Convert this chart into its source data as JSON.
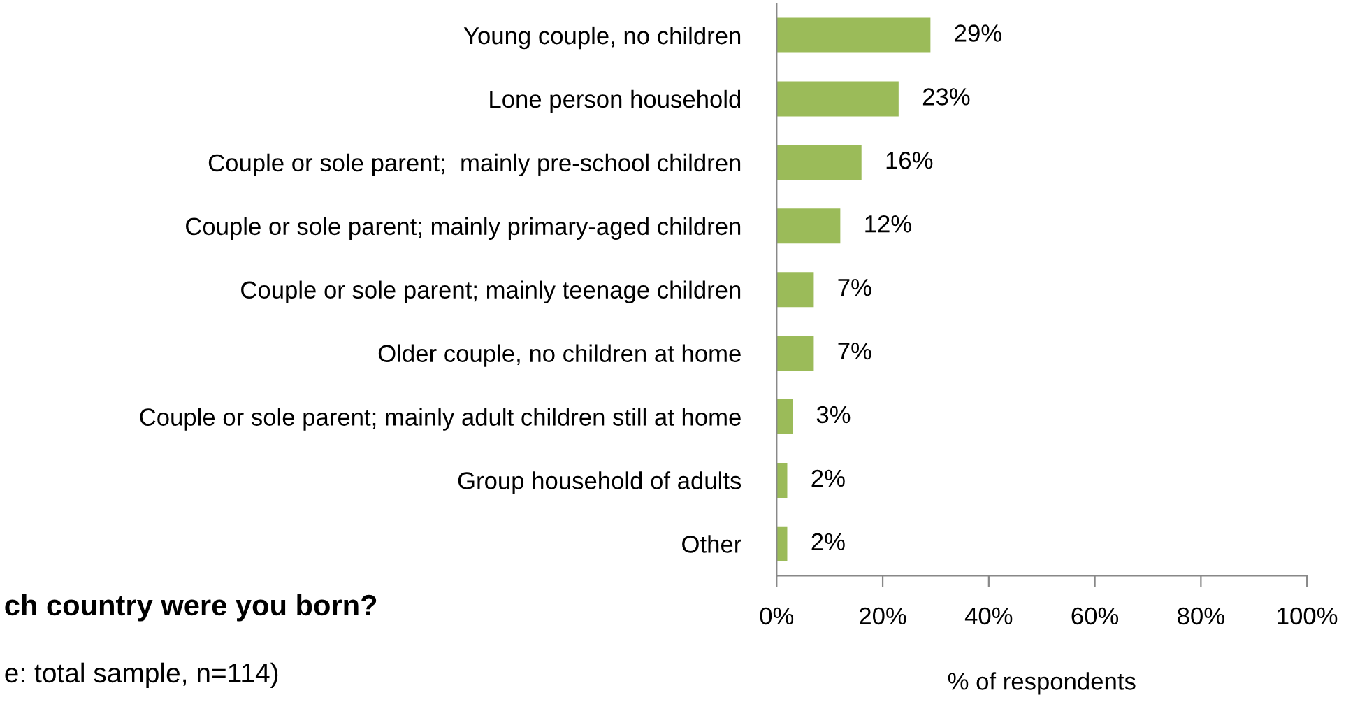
{
  "chart_data": {
    "type": "bar",
    "orientation": "horizontal",
    "xlabel": "% of respondents",
    "categories": [
      "Young couple, no children",
      "Lone person household",
      "Couple or sole parent;  mainly pre-school children",
      "Couple or sole parent; mainly primary-aged children",
      "Couple or sole parent; mainly teenage children",
      "Older couple, no children at home",
      "Couple or sole parent; mainly adult children still at home",
      "Group household of adults",
      "Other"
    ],
    "values": [
      29,
      23,
      16,
      12,
      7,
      7,
      3,
      2,
      2
    ],
    "color": "#9bbb59",
    "value_labels": [
      "29%",
      "23%",
      "16%",
      "12%",
      "7%",
      "7%",
      "3%",
      "2%",
      "2%"
    ],
    "xlim": [
      0,
      100
    ],
    "xticks": [
      {
        "value": 0,
        "label": "0%"
      },
      {
        "value": 20,
        "label": "20%"
      },
      {
        "value": 40,
        "label": "40%"
      },
      {
        "value": 60,
        "label": "60%"
      },
      {
        "value": 80,
        "label": "80%"
      },
      {
        "value": 100,
        "label": "100%"
      }
    ],
    "grid": false,
    "annotations": [
      "ch country were you born?",
      "e: total sample, n=114)"
    ]
  }
}
